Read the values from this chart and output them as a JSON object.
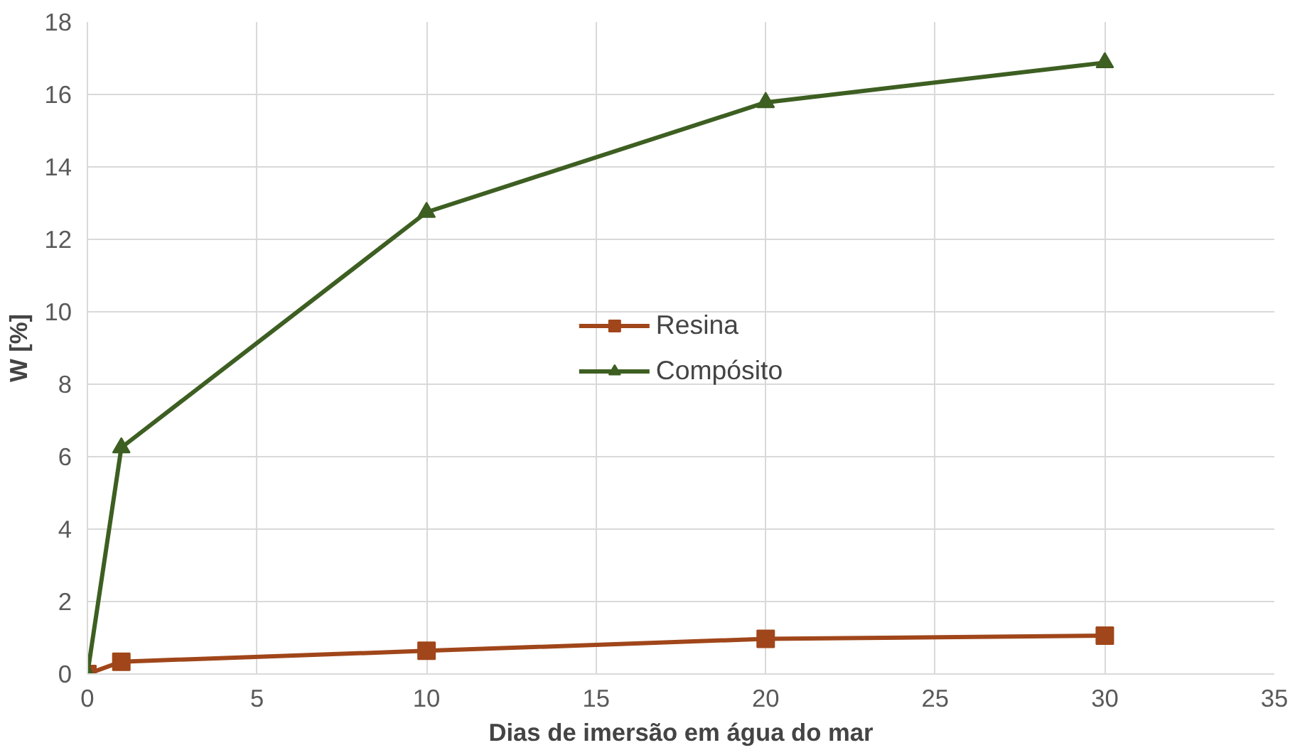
{
  "chart_data": {
    "type": "line",
    "xlabel": "Dias de imersão em água do mar",
    "ylabel": "W [%]",
    "xlim": [
      0,
      35
    ],
    "xticks": [
      0,
      5,
      10,
      15,
      20,
      25,
      30,
      35
    ],
    "ylim": [
      0,
      18
    ],
    "yticks": [
      0,
      2,
      4,
      6,
      8,
      10,
      12,
      14,
      16,
      18
    ],
    "grid": true,
    "legend": "center",
    "x": [
      0,
      1,
      10,
      20,
      30
    ],
    "series": [
      {
        "name": "Resina",
        "color": "#a0461a",
        "marker": "square",
        "values": [
          0,
          0.34,
          0.64,
          0.97,
          1.06
        ]
      },
      {
        "name": "Compósito",
        "color": "#3d5f22",
        "marker": "triangle",
        "values": [
          0,
          6.25,
          12.75,
          15.78,
          16.88
        ]
      }
    ]
  }
}
